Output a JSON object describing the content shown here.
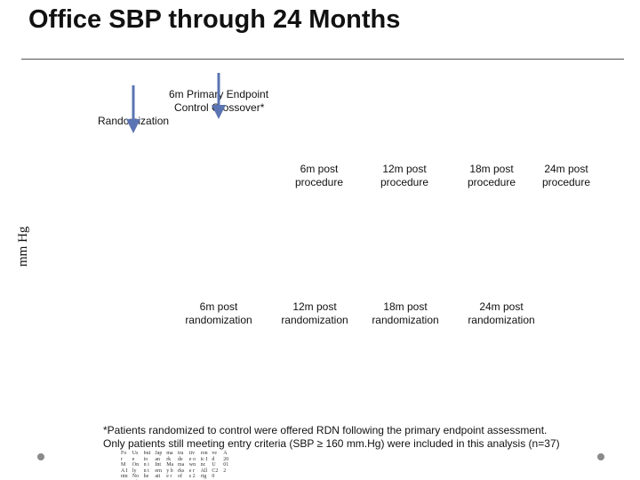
{
  "slide": {
    "title": "Office SBP through 24 Months"
  },
  "annotations": {
    "primary_endpoint": "6m Primary Endpoint",
    "control_crossover": "Control Crossover*",
    "randomization": "Randomization",
    "arrow_color": "#5b74b3"
  },
  "axis": {
    "ylabel": "mm Hg",
    "top_ticks": [
      {
        "line1": "6m post",
        "line2": "procedure"
      },
      {
        "line1": "12m post",
        "line2": "procedure"
      },
      {
        "line1": "18m post",
        "line2": "procedure"
      },
      {
        "line1": "24m post",
        "line2": "procedure"
      }
    ],
    "bottom_ticks": [
      {
        "line1": "6m post",
        "line2": "randomization"
      },
      {
        "line1": "12m post",
        "line2": "randomization"
      },
      {
        "line1": "18m post",
        "line2": "randomization"
      },
      {
        "line1": "24m post",
        "line2": "randomization"
      }
    ]
  },
  "footnote": {
    "line1": "*Patients randomized to control were offered RDN following the primary endpoint assessment.",
    "line2": "Only patients still meeting entry criteria (SBP ≥ 160 mm.Hg) were included in this analysis (n=37)"
  },
  "fine_print": [
    "For",
    "MA",
    "Intn",
    "atio",
    "nal",
    "Use",
    "Only",
    "Not",
    "for",
    "distri",
    "butio",
    "n in",
    "the",
    "USA",
    "or",
    "Japan",
    "Intern",
    "ation",
    "al use",
    "only",
    "mark",
    "May",
    "be",
    "regis",
    "tered",
    "trade",
    "marks",
    "of",
    "their",
    "respec",
    "tive",
    "owne",
    "rs",
    "2019",
    "Medt",
    "ronic",
    "Inc",
    "All",
    "rights",
    "reser",
    "ved",
    "UC20",
    "XXX",
    "EN",
    "IDC",
    "A",
    "2001",
    "2"
  ]
}
